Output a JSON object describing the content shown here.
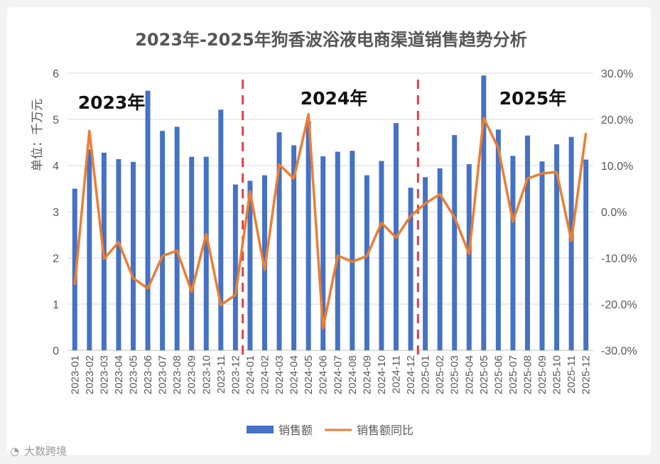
{
  "chart_data": {
    "type": "bar",
    "title": "2023年-2025年狗香波浴液电商渠道销售趋势分析",
    "ylabel": "单位：千万元",
    "ylim": [
      0,
      6
    ],
    "yticks": [
      0,
      1,
      2,
      3,
      4,
      5,
      6
    ],
    "y2lim": [
      -30,
      30
    ],
    "y2ticks": [
      "-30.0%",
      "-20.0%",
      "-10.0%",
      "0.0%",
      "10.0%",
      "20.0%",
      "30.0%"
    ],
    "grid": true,
    "legend_position": "bottom",
    "categories": [
      "2023-01",
      "2023-02",
      "2023-03",
      "2023-04",
      "2023-05",
      "2023-06",
      "2023-07",
      "2023-08",
      "2023-09",
      "2023-10",
      "2023-11",
      "2023-12",
      "2024-01",
      "2024-02",
      "2024-03",
      "2024-04",
      "2024-05",
      "2024-06",
      "2024-07",
      "2024-08",
      "2024-09",
      "2024-10",
      "2024-11",
      "2024-12",
      "2025-01",
      "2025-02",
      "2025-03",
      "2025-04",
      "2025-05",
      "2025-06",
      "2025-07",
      "2025-08",
      "2025-09",
      "2025-10",
      "2025-11",
      "2025-12"
    ],
    "series": [
      {
        "name": "销售额",
        "type": "bar",
        "axis": "left",
        "color": "#4472C4",
        "values": [
          3.5,
          4.35,
          4.28,
          4.14,
          4.08,
          5.62,
          4.75,
          4.84,
          4.19,
          4.19,
          5.21,
          3.59,
          3.67,
          3.79,
          4.72,
          4.44,
          4.96,
          4.2,
          4.3,
          4.32,
          3.79,
          4.1,
          4.92,
          3.52,
          3.75,
          3.94,
          4.66,
          4.03,
          5.95,
          4.78,
          4.21,
          4.65,
          4.09,
          4.46,
          4.62,
          4.13
        ]
      },
      {
        "name": "销售额同比",
        "type": "line",
        "axis": "right",
        "color": "#ED7D31",
        "values": [
          -15.8,
          17.5,
          -10.2,
          -6.6,
          -14.4,
          -16.6,
          -9.6,
          -8.4,
          -17.3,
          -4.8,
          -20.2,
          -18.0,
          4.4,
          -12.6,
          10.2,
          7.2,
          21.1,
          -25.2,
          -9.5,
          -10.8,
          -9.6,
          -2.4,
          -5.6,
          -0.9,
          1.8,
          3.8,
          -1.2,
          -9.1,
          20.3,
          13.8,
          -2.1,
          7.2,
          8.3,
          8.6,
          -6.3,
          17.0
        ]
      }
    ],
    "dividers_after": [
      "2023-12",
      "2024-12"
    ],
    "annotations": [
      "2023年",
      "2024年",
      "2025年"
    ]
  },
  "watermark": "大数跨境",
  "colors": {
    "bar": "#4472C4",
    "line": "#ED7D31",
    "divider": "#E0404A"
  }
}
